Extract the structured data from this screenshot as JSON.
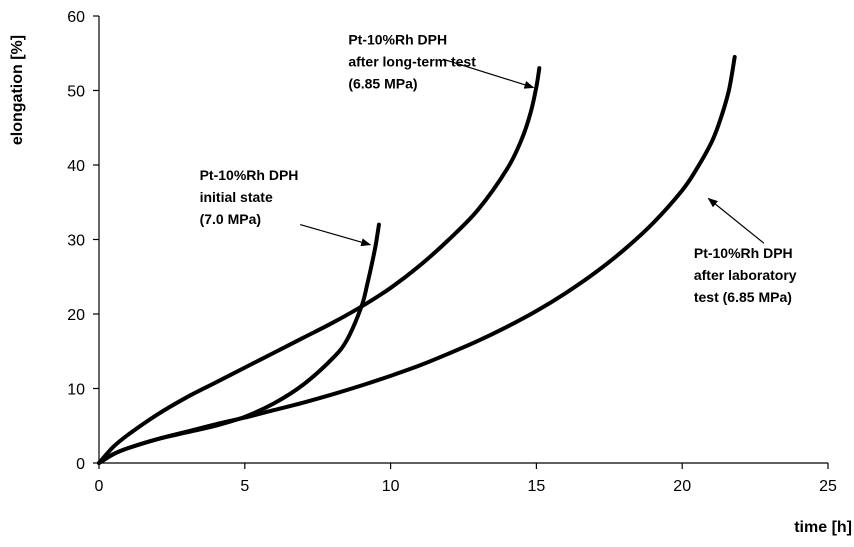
{
  "chart_data": {
    "type": "line",
    "title": "",
    "xlabel": "time [h]",
    "ylabel": "elongation [%]",
    "xlim": [
      0,
      25
    ],
    "ylim": [
      0,
      60
    ],
    "xticks": [
      "0",
      "5",
      "10",
      "15",
      "20",
      "25"
    ],
    "yticks": [
      "0",
      "10",
      "20",
      "30",
      "40",
      "50",
      "60"
    ],
    "grid": false,
    "legend": "none",
    "series": [
      {
        "x": [
          0,
          0.5,
          1,
          2,
          3,
          4,
          5,
          6,
          7,
          8,
          8.5,
          9,
          9.2,
          9.4,
          9.5,
          9.6
        ],
        "y": [
          0,
          1.2,
          2.0,
          3.2,
          4.1,
          5.0,
          6.2,
          8.0,
          10.5,
          14.0,
          16.5,
          21.0,
          24.0,
          27.5,
          29.5,
          32.0
        ],
        "color": "#000000"
      },
      {
        "x": [
          0,
          0.5,
          1,
          2,
          3,
          4,
          5,
          6,
          7,
          8,
          9,
          10,
          11,
          12,
          13,
          14,
          14.5,
          14.8,
          15.0,
          15.1
        ],
        "y": [
          0,
          2.2,
          3.8,
          6.5,
          8.8,
          10.8,
          12.8,
          14.8,
          16.8,
          18.8,
          21.0,
          23.5,
          26.5,
          30.0,
          34.0,
          39.5,
          43.5,
          47.0,
          50.5,
          53.0
        ],
        "color": "#000000"
      },
      {
        "x": [
          0,
          0.5,
          1,
          2,
          3,
          4,
          5,
          6,
          7,
          8,
          9,
          10,
          11,
          12,
          13,
          14,
          15,
          16,
          17,
          18,
          19,
          20,
          20.5,
          21,
          21.3,
          21.6,
          21.8
        ],
        "y": [
          0,
          1.2,
          2.0,
          3.2,
          4.2,
          5.2,
          6.1,
          7.1,
          8.1,
          9.2,
          10.4,
          11.7,
          13.1,
          14.7,
          16.4,
          18.3,
          20.4,
          22.8,
          25.5,
          28.6,
          32.2,
          36.6,
          39.5,
          43.0,
          46.0,
          50.0,
          54.5
        ],
        "color": "#000000"
      }
    ],
    "annotations": [
      {
        "lines": [
          "Pt-10%Rh DPH",
          "initial state",
          "(7.0 MPa)"
        ],
        "text_x": 3.45,
        "text_y": 38.0,
        "arrow_from": [
          6.9,
          32.0
        ],
        "arrow_to": [
          9.3,
          29.3
        ]
      },
      {
        "lines": [
          "Pt-10%Rh DPH",
          "after long-term test",
          "(6.85 MPa)"
        ],
        "text_x": 8.55,
        "text_y": 56.2,
        "arrow_from": [
          11.8,
          54.2
        ],
        "arrow_to": [
          14.9,
          50.4
        ]
      },
      {
        "lines": [
          "Pt-10%Rh DPH",
          "after laboratory",
          "test (6.85 MPa)"
        ],
        "text_x": 20.4,
        "text_y": 27.5,
        "arrow_from": [
          22.8,
          29.5
        ],
        "arrow_to": [
          20.9,
          35.5
        ]
      }
    ]
  }
}
